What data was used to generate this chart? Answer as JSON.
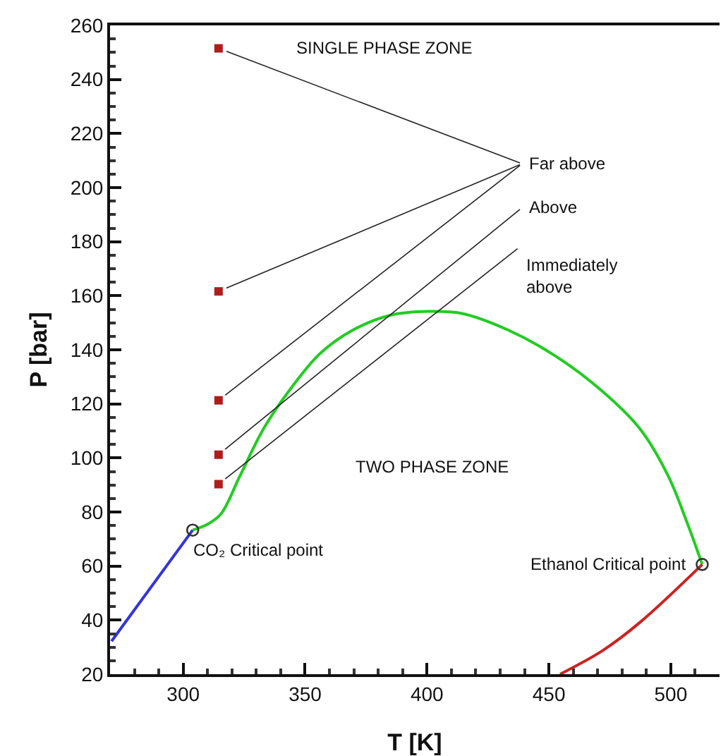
{
  "chart_data": {
    "type": "line",
    "xlabel": "T [K]",
    "ylabel": "P [bar]",
    "xlim": [
      270,
      520
    ],
    "xticks": [
      300,
      350,
      400,
      450,
      500
    ],
    "ylim": [
      20,
      260
    ],
    "yticks": [
      20,
      40,
      60,
      80,
      100,
      120,
      140,
      160,
      180,
      200,
      220,
      240,
      260
    ],
    "grid": false,
    "series": [
      {
        "color": "#3333dd",
        "marker": "none",
        "x": [
          270.6,
          303.9
        ],
        "values": [
          32.2,
          73.3
        ]
      },
      {
        "color": "#22cc22",
        "marker": "none",
        "x": [
          303.9,
          310,
          315.5,
          323.2,
          332.9,
          342.5,
          356,
          369.6,
          385,
          400.5,
          414,
          433.3,
          452.7,
          472,
          487.4,
          499,
          506.8,
          512.9
        ],
        "values": [
          73.3,
          75.5,
          79.3,
          93.2,
          110.7,
          123.7,
          138.5,
          147.3,
          152.8,
          154.2,
          153.5,
          147.3,
          137.7,
          124.6,
          110.7,
          93.2,
          75.8,
          60.6
        ]
      },
      {
        "color": "#cc2222",
        "marker": "none",
        "x": [
          454.6,
          472,
          487.4,
          512.9
        ],
        "values": [
          20,
          28.7,
          39.2,
          60.6
        ]
      },
      {
        "type": "scatter",
        "color": "#b01c1c",
        "marker": "square",
        "x": [
          314.5,
          314.5,
          314.5,
          314.5,
          314.5
        ],
        "values": [
          251.5,
          161.6,
          121.3,
          101.2,
          90.3
        ]
      },
      {
        "type": "scatter",
        "color": "#333333",
        "marker": "circle",
        "x": [
          303.9,
          512.9
        ],
        "values": [
          73.3,
          60.6
        ]
      }
    ],
    "annotations": [
      "SINGLE PHASE ZONE",
      "TWO PHASE ZONE",
      {
        "text": "CO₂ Critical point",
        "x": 303.9,
        "y": 73.3
      },
      {
        "text": "Ethanol Critical point",
        "x": 512.9,
        "y": 60.6
      },
      "Far above",
      "Above",
      "Immediately\nabove"
    ]
  }
}
